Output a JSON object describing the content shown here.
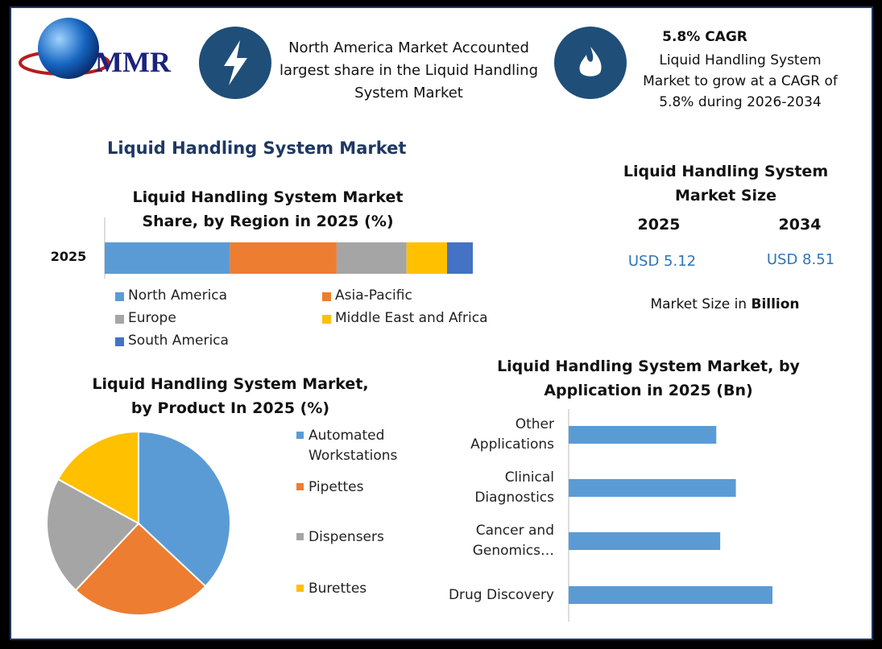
{
  "header": {
    "logo": "MMR",
    "region_note": "North America Market Accounted largest share in the Liquid Handling System Market",
    "cagr_title": "5.8% CAGR",
    "cagr_note": "Liquid Handling System Market to grow at a CAGR of 5.8% during 2026-2034"
  },
  "title": "Liquid Handling System Market",
  "market_size": {
    "title": "Liquid Handling System Market Size",
    "years": [
      "2025",
      "2034"
    ],
    "values": [
      "USD 5.12",
      "USD 8.51"
    ],
    "note": "Market Size in",
    "note_unit": "Billion"
  },
  "chart_data": [
    {
      "type": "bar",
      "stacked": true,
      "orientation": "horizontal",
      "title": "Liquid Handling System Market Share, by Region in 2025 (%)",
      "categories": [
        "2025"
      ],
      "series": [
        {
          "name": "North America",
          "color": "#5b9bd5",
          "values": [
            34
          ]
        },
        {
          "name": "Asia-Pacific",
          "color": "#ed7d31",
          "values": [
            29
          ]
        },
        {
          "name": "Europe",
          "color": "#a5a5a5",
          "values": [
            19
          ]
        },
        {
          "name": "Middle East and Africa",
          "color": "#ffc000",
          "values": [
            11
          ]
        },
        {
          "name": "South America",
          "color": "#4472c4",
          "values": [
            7
          ]
        }
      ]
    },
    {
      "type": "pie",
      "title": "Liquid Handling System Market, by Product In 2025 (%)",
      "categories": [
        "Automated Workstations",
        "Pipettes",
        "Dispensers",
        "Burettes"
      ],
      "values": [
        37,
        25,
        21,
        17
      ],
      "colors": [
        "#5b9bd5",
        "#ed7d31",
        "#a5a5a5",
        "#ffc000"
      ]
    },
    {
      "type": "bar",
      "stacked": false,
      "orientation": "horizontal",
      "title": "Liquid Handling System Market, by Application in 2025 (Bn)",
      "categories": [
        "Other Applications",
        "Clinical Diagnostics",
        "Cancer and Genomics…",
        "Drug Discovery"
      ],
      "values": [
        1.13,
        1.28,
        1.16,
        1.56
      ],
      "color": "#5b9bd5"
    }
  ]
}
